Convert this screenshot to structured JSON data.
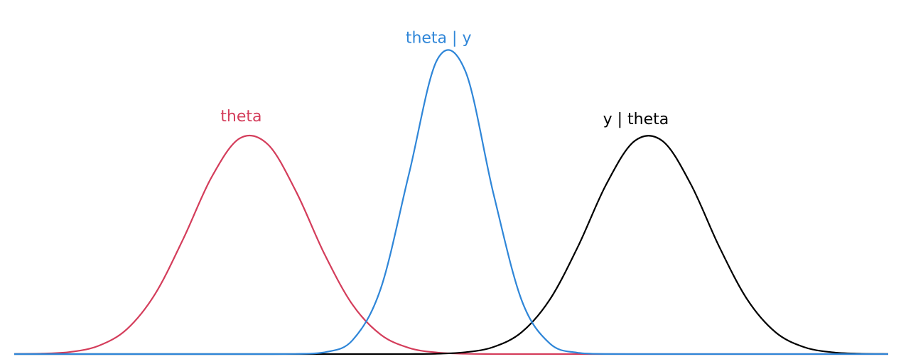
{
  "chart_data": {
    "type": "line",
    "x": [
      0,
      0.4,
      0.8,
      1.2,
      1.6,
      2.0,
      2.4,
      2.8,
      3.2,
      3.6,
      4.0,
      4.4,
      4.8,
      5.2,
      5.6,
      6.0,
      6.4,
      6.8,
      7.2,
      7.6,
      8.0,
      8.4,
      8.8,
      9.2,
      9.6,
      10.0,
      10.4,
      10.8,
      11.2,
      11.6,
      12.0,
      12.4
    ],
    "xlim": [
      0,
      12.4
    ],
    "ylim": [
      0,
      1
    ],
    "series": [
      {
        "name": "theta",
        "color": "#d43d5b",
        "values": [
          0.0002,
          0.0015,
          0.0071,
          0.027,
          0.081,
          0.195,
          0.374,
          0.573,
          0.699,
          0.679,
          0.526,
          0.325,
          0.16,
          0.063,
          0.02,
          0.005,
          0.001,
          0.0002,
          0,
          0,
          0,
          0,
          0,
          0,
          0,
          0,
          0,
          0,
          0,
          0,
          0,
          0
        ]
      },
      {
        "name": "y | theta",
        "color": "#000000",
        "values": [
          0,
          0,
          0,
          0,
          0,
          0,
          0,
          0,
          0,
          0,
          0,
          0,
          0,
          0,
          0.0002,
          0.0012,
          0.0059,
          0.023,
          0.071,
          0.177,
          0.349,
          0.55,
          0.69,
          0.69,
          0.55,
          0.349,
          0.177,
          0.071,
          0.023,
          0.0059,
          0.0012,
          0.0002
        ]
      },
      {
        "name": "theta | y",
        "color": "#2f86d8",
        "values": [
          0,
          0,
          0,
          0,
          0,
          0,
          0,
          0,
          0,
          0,
          0.0004,
          0.0056,
          0.045,
          0.212,
          0.583,
          0.953,
          0.917,
          0.519,
          0.174,
          0.034,
          0.004,
          0.0003,
          0,
          0,
          0,
          0,
          0,
          0,
          0,
          0,
          0,
          0
        ]
      }
    ]
  }
}
